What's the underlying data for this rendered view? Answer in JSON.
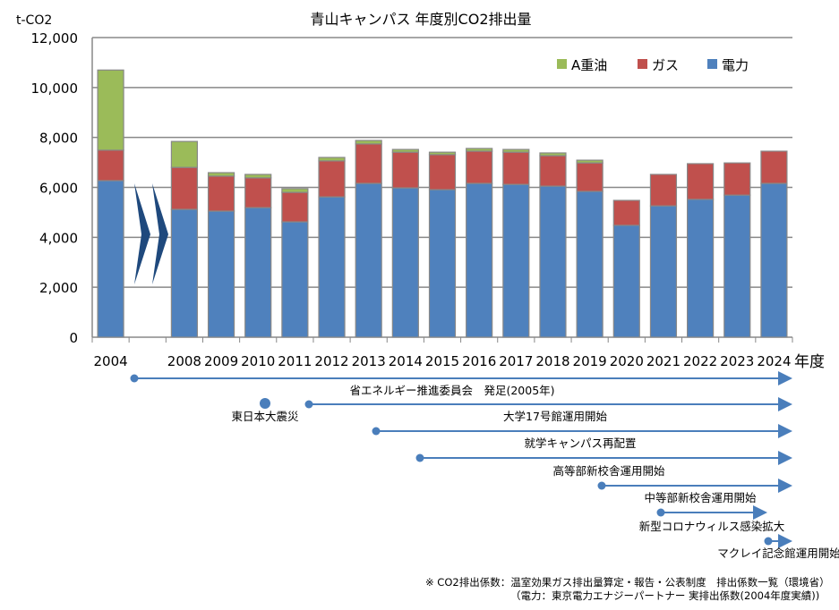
{
  "chart_data": {
    "type": "bar",
    "stacked": true,
    "title": "青山キャンパス 年度別CO2排出量",
    "ylabel": "t-CO2",
    "xlabel": "年度",
    "ylim": [
      0,
      12000
    ],
    "yticks": [
      "0",
      "2,000",
      "4,000",
      "6,000",
      "8,000",
      "10,000",
      "12,000"
    ],
    "yticks_values": [
      0,
      2000,
      4000,
      6000,
      8000,
      10000,
      12000
    ],
    "grid": true,
    "legend_position": "top-right",
    "categories": [
      "2004",
      "2008",
      "2009",
      "2010",
      "2011",
      "2012",
      "2013",
      "2014",
      "2015",
      "2016",
      "2017",
      "2018",
      "2019",
      "2020",
      "2021",
      "2022",
      "2023",
      "2024"
    ],
    "series": [
      {
        "name": "電力",
        "color": "#4f81bd",
        "values": [
          6270,
          5120,
          5050,
          5190,
          4620,
          5620,
          6160,
          5980,
          5910,
          6160,
          6120,
          6050,
          5840,
          4480,
          5260,
          5520,
          5690,
          6160
        ]
      },
      {
        "name": "ガス",
        "color": "#c0504d",
        "values": [
          1220,
          1680,
          1400,
          1190,
          1180,
          1440,
          1580,
          1430,
          1400,
          1290,
          1290,
          1220,
          1140,
          1000,
          1260,
          1430,
          1290,
          1290
        ]
      },
      {
        "name": "A重油",
        "color": "#9bbb59",
        "values": [
          3210,
          1040,
          140,
          140,
          150,
          140,
          140,
          110,
          100,
          110,
          110,
          110,
          110,
          0,
          0,
          0,
          0,
          0
        ]
      }
    ],
    "timeline": [
      {
        "label": ""
      },
      {
        "label": "省エネルギー推進委員会　発足(2005年)"
      },
      {
        "label": "東日本大震災"
      },
      {
        "label": "大学17号館運用開始"
      },
      {
        "label": "就学キャンパス再配置"
      },
      {
        "label": "高等部新校舎運用開始"
      },
      {
        "label": "中等部新校舎運用開始"
      },
      {
        "label": "新型コロナウィルス感染拡大"
      },
      {
        "label": "マクレイ記念館運用開始"
      }
    ],
    "note_line1": "※ CO2排出係数：温室効果ガス排出量算定・報告・公表制度　排出係数一覧（環境省）",
    "note_line2": "（電力：東京電力エナジーパートナー 実排出係数(2004年度実績))"
  }
}
